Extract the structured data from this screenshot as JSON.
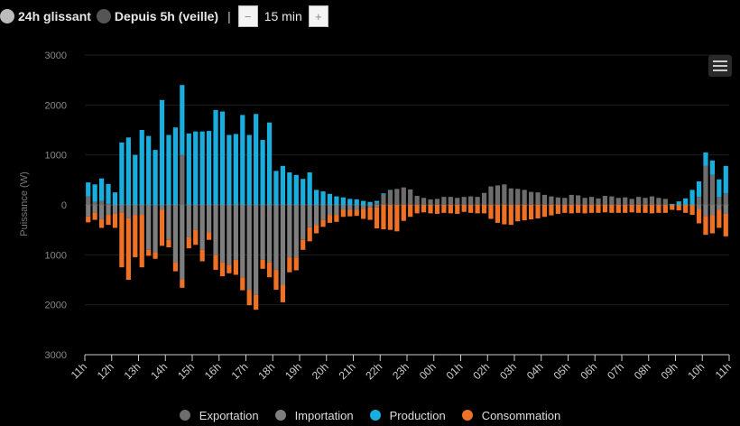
{
  "controls": {
    "option_24h": "24h glissant",
    "option_5h": "Depuis 5h (veille)",
    "separator": "|",
    "minus": "−",
    "plus": "+",
    "step_value": "15 min",
    "option_24h_color": "#bbbbbb",
    "option_5h_color": "#555555"
  },
  "menu_icon": "hamburger-menu-icon",
  "chart_data": {
    "type": "bar",
    "ylabel": "Puissance (W)",
    "ylim": [
      -3000,
      3000
    ],
    "y_ticks": [
      3000,
      2000,
      1000,
      0,
      -1000,
      -2000,
      -3000
    ],
    "y_tick_labels": [
      "3000",
      "2000",
      "1000",
      "0",
      "1000",
      "2000",
      "3000"
    ],
    "x_tick_labels": [
      "11h",
      "12h",
      "13h",
      "14h",
      "15h",
      "16h",
      "17h",
      "18h",
      "19h",
      "20h",
      "21h",
      "22h",
      "23h",
      "00h",
      "01h",
      "02h",
      "03h",
      "04h",
      "05h",
      "06h",
      "07h",
      "08h",
      "09h",
      "10h",
      "11h"
    ],
    "x_tick_positions": [
      0,
      4,
      8,
      12,
      16,
      20,
      24,
      28,
      32,
      36,
      40,
      44,
      48,
      52,
      56,
      60,
      64,
      68,
      72,
      76,
      80,
      84,
      88,
      92,
      96
    ],
    "grid": true,
    "legend_position": "bottom",
    "stacking": "stacked",
    "series": [
      {
        "name": "Exportation",
        "color": "#6d6d6d",
        "values": [
          170,
          60,
          80,
          20,
          0,
          0,
          0,
          0,
          0,
          0,
          0,
          0,
          0,
          0,
          1000,
          0,
          0,
          0,
          0,
          0,
          0,
          0,
          0,
          0,
          0,
          0,
          0,
          0,
          0,
          0,
          0,
          0,
          0,
          0,
          0,
          0,
          0,
          0,
          0,
          0,
          0,
          0,
          0,
          40,
          210,
          290,
          320,
          350,
          310,
          180,
          140,
          110,
          120,
          160,
          160,
          140,
          160,
          170,
          160,
          240,
          370,
          390,
          410,
          330,
          320,
          300,
          260,
          250,
          200,
          170,
          150,
          140,
          200,
          190,
          140,
          160,
          130,
          180,
          170,
          140,
          150,
          120,
          160,
          140,
          170,
          140,
          120,
          0,
          0,
          0,
          0,
          160,
          780,
          600,
          160,
          230
        ]
      },
      {
        "name": "Importation",
        "color": "#7e7e7e",
        "values": [
          -230,
          -150,
          -290,
          -200,
          -180,
          -150,
          -270,
          -200,
          -200,
          -900,
          -950,
          -100,
          -700,
          -1150,
          -1500,
          -650,
          -500,
          -900,
          -550,
          -1000,
          -1150,
          -1200,
          -1100,
          -1450,
          -1700,
          -1800,
          -1100,
          -1150,
          -1300,
          -1600,
          -1050,
          -1050,
          -700,
          -450,
          -400,
          -300,
          -200,
          -200,
          -100,
          -100,
          -100,
          -80,
          -50,
          -50,
          0,
          0,
          0,
          0,
          0,
          0,
          0,
          0,
          0,
          0,
          0,
          0,
          0,
          0,
          0,
          0,
          0,
          0,
          0,
          0,
          0,
          0,
          0,
          0,
          0,
          0,
          0,
          0,
          0,
          0,
          0,
          0,
          0,
          0,
          0,
          0,
          0,
          0,
          0,
          0,
          0,
          0,
          0,
          0,
          0,
          0,
          0,
          -80,
          -220,
          -200,
          -100,
          -180
        ]
      },
      {
        "name": "Production",
        "color": "#1aaede",
        "values": [
          280,
          350,
          450,
          400,
          250,
          1250,
          1350,
          1000,
          1500,
          1380,
          1100,
          2100,
          1400,
          1550,
          1400,
          1430,
          1470,
          1470,
          1480,
          1900,
          1870,
          1400,
          1420,
          1800,
          1400,
          1820,
          1300,
          1650,
          680,
          780,
          650,
          600,
          520,
          650,
          300,
          270,
          220,
          170,
          150,
          120,
          110,
          80,
          60,
          40,
          20,
          10,
          0,
          0,
          0,
          0,
          0,
          0,
          0,
          0,
          0,
          0,
          0,
          0,
          0,
          0,
          0,
          0,
          0,
          0,
          0,
          0,
          0,
          0,
          0,
          0,
          0,
          0,
          0,
          0,
          0,
          0,
          0,
          0,
          0,
          0,
          0,
          0,
          0,
          0,
          0,
          0,
          0,
          20,
          70,
          130,
          300,
          310,
          270,
          290,
          350,
          550
        ]
      },
      {
        "name": "Consommation",
        "color": "#ef7125",
        "values": [
          -120,
          -150,
          -170,
          -200,
          -280,
          -1100,
          -1230,
          -850,
          -1050,
          -120,
          -130,
          -720,
          -150,
          -180,
          -160,
          -220,
          -300,
          -230,
          -150,
          -300,
          -280,
          -170,
          -300,
          -260,
          -310,
          -300,
          -180,
          -300,
          -400,
          -350,
          -300,
          -260,
          -200,
          -280,
          -170,
          -140,
          -160,
          -140,
          -140,
          -130,
          -120,
          -200,
          -250,
          -420,
          -490,
          -500,
          -530,
          -320,
          -240,
          -170,
          -150,
          -170,
          -180,
          -160,
          -170,
          -180,
          -140,
          -160,
          -170,
          -170,
          -280,
          -360,
          -390,
          -400,
          -330,
          -310,
          -290,
          -270,
          -240,
          -210,
          -180,
          -160,
          -170,
          -160,
          -170,
          -160,
          -160,
          -150,
          -160,
          -160,
          -160,
          -150,
          -160,
          -160,
          -170,
          -160,
          -160,
          -100,
          -110,
          -160,
          -200,
          -290,
          -380,
          -370,
          -360,
          -450
        ]
      }
    ]
  }
}
